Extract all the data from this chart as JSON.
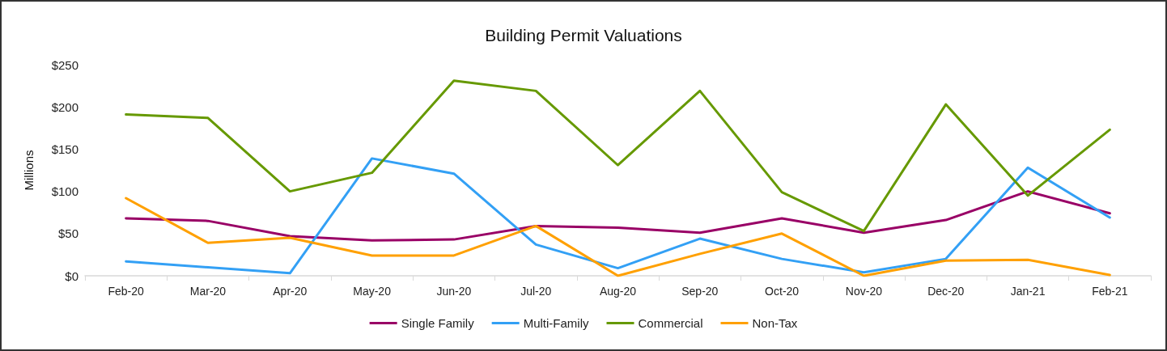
{
  "chart_data": {
    "type": "line",
    "title": "Building Permit Valuations",
    "ylabel": "Millions",
    "categories": [
      "Feb-20",
      "Mar-20",
      "Apr-20",
      "May-20",
      "Jun-20",
      "Jul-20",
      "Aug-20",
      "Sep-20",
      "Oct-20",
      "Nov-20",
      "Dec-20",
      "Jan-21",
      "Feb-21"
    ],
    "series": [
      {
        "name": "Single Family",
        "color": "#990066",
        "values": [
          68,
          65,
          47,
          42,
          43,
          59,
          57,
          51,
          68,
          51,
          66,
          100,
          74
        ]
      },
      {
        "name": "Multi-Family",
        "color": "#33a0f5",
        "values": [
          17,
          10,
          3,
          139,
          121,
          37,
          9,
          44,
          20,
          4,
          20,
          128,
          69
        ]
      },
      {
        "name": "Commercial",
        "color": "#669900",
        "values": [
          191,
          187,
          100,
          122,
          231,
          219,
          131,
          219,
          99,
          53,
          203,
          95,
          173
        ]
      },
      {
        "name": "Non-Tax",
        "color": "#ffa000",
        "values": [
          92,
          39,
          45,
          24,
          24,
          59,
          0,
          26,
          50,
          0,
          18,
          19,
          1
        ]
      }
    ],
    "ylim": [
      0,
      250
    ],
    "yticks": [
      {
        "value": 0,
        "label": "$0"
      },
      {
        "value": 50,
        "label": "$50"
      },
      {
        "value": 100,
        "label": "$100"
      },
      {
        "value": 150,
        "label": "$150"
      },
      {
        "value": 200,
        "label": "$200"
      },
      {
        "value": 250,
        "label": "$250"
      }
    ],
    "grid": false,
    "legend": "bottom",
    "marker": "none",
    "line_style": "solid"
  }
}
